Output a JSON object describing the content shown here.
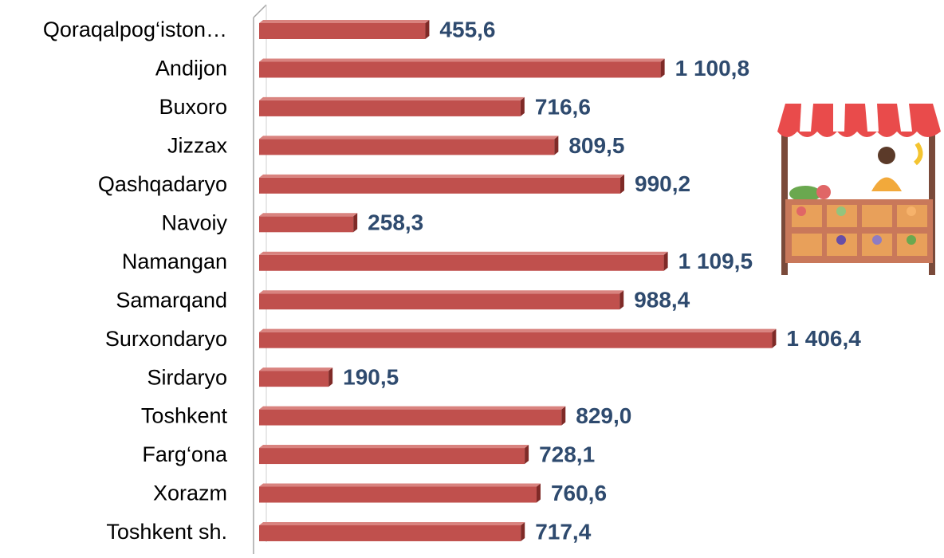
{
  "chart_data": {
    "type": "bar",
    "orientation": "horizontal",
    "color": "#c0504d",
    "categories": [
      "Qoraqalpog‘iston…",
      "Andijon",
      "Buxoro",
      "Jizzax",
      "Qashqadaryo",
      "Navoiy",
      "Namangan",
      "Samarqand",
      "Surxondaryo",
      "Sirdaryo",
      "Toshkent",
      "Farg‘ona",
      "Xorazm",
      "Toshkent sh."
    ],
    "values": [
      455.6,
      1100.8,
      716.6,
      809.5,
      990.2,
      258.3,
      1109.5,
      988.4,
      1406.4,
      190.5,
      829.0,
      728.1,
      760.6,
      717.4
    ],
    "value_labels": [
      "455,6",
      "1 100,8",
      "716,6",
      "809,5",
      "990,2",
      "258,3",
      "1 109,5",
      "988,4",
      "1 406,4",
      "190,5",
      "829,0",
      "728,1",
      "760,6",
      "717,4"
    ]
  }
}
